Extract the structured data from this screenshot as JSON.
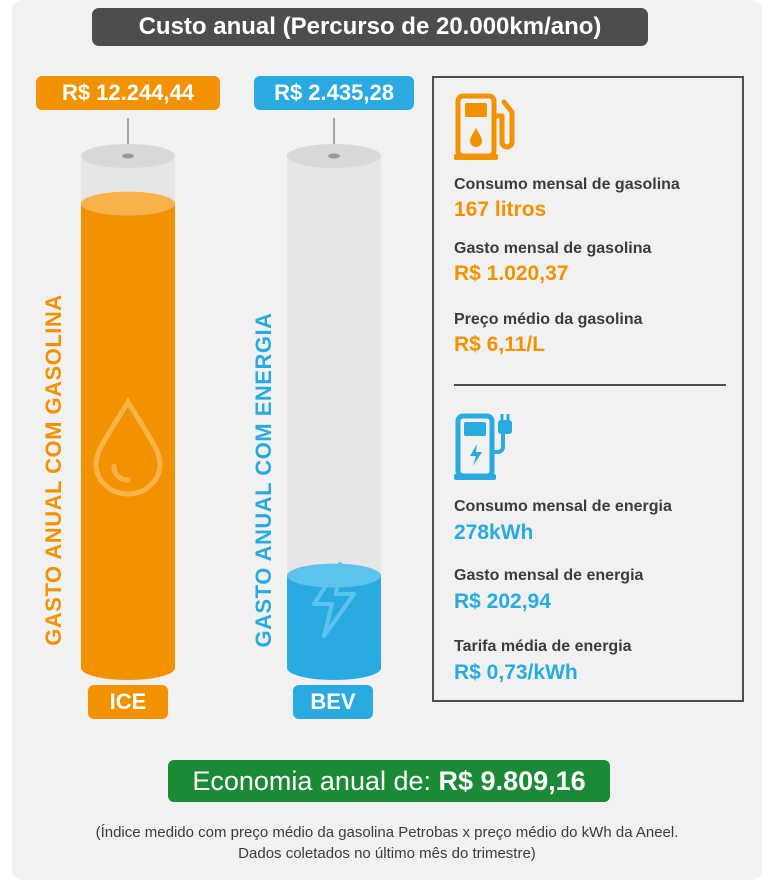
{
  "title": "Custo anual (Percurso de 20.000km/ano)",
  "chart_data": {
    "type": "bar",
    "title": "Custo anual (Percurso de 20.000km/ano)",
    "categories": [
      "ICE",
      "BEV"
    ],
    "values": [
      12244.44,
      2435.28
    ],
    "value_labels": [
      "R$ 12.244,44",
      "R$ 2.435,28"
    ],
    "axis_labels": [
      "GASTO ANUAL COM GASOLINA",
      "GASTO ANUAL COM ENERGIA"
    ],
    "ylim": [
      0,
      13500
    ],
    "colors": [
      "#f39200",
      "#29abe2"
    ]
  },
  "info": {
    "gasoline": [
      {
        "label": "Consumo mensal de gasolina",
        "value": "167 litros"
      },
      {
        "label": "Gasto mensal de gasolina",
        "value": "R$ 1.020,37"
      },
      {
        "label": "Preço médio da gasolina",
        "value": "R$ 6,11/L"
      }
    ],
    "energy": [
      {
        "label": "Consumo mensal de energia",
        "value": "278kWh"
      },
      {
        "label": "Gasto mensal de energia",
        "value": "R$ 202,94"
      },
      {
        "label": "Tarifa média de energia",
        "value": "R$ 0,73/kWh"
      }
    ]
  },
  "saving": {
    "prefix": "Economia anual de:",
    "value": "R$ 9.809,16"
  },
  "footnote": {
    "line1": "(Índice medido com preço médio da gasolina Petrobas x preço médio do kWh da Aneel.",
    "line2": "Dados coletados no último mês do trimestre)"
  }
}
